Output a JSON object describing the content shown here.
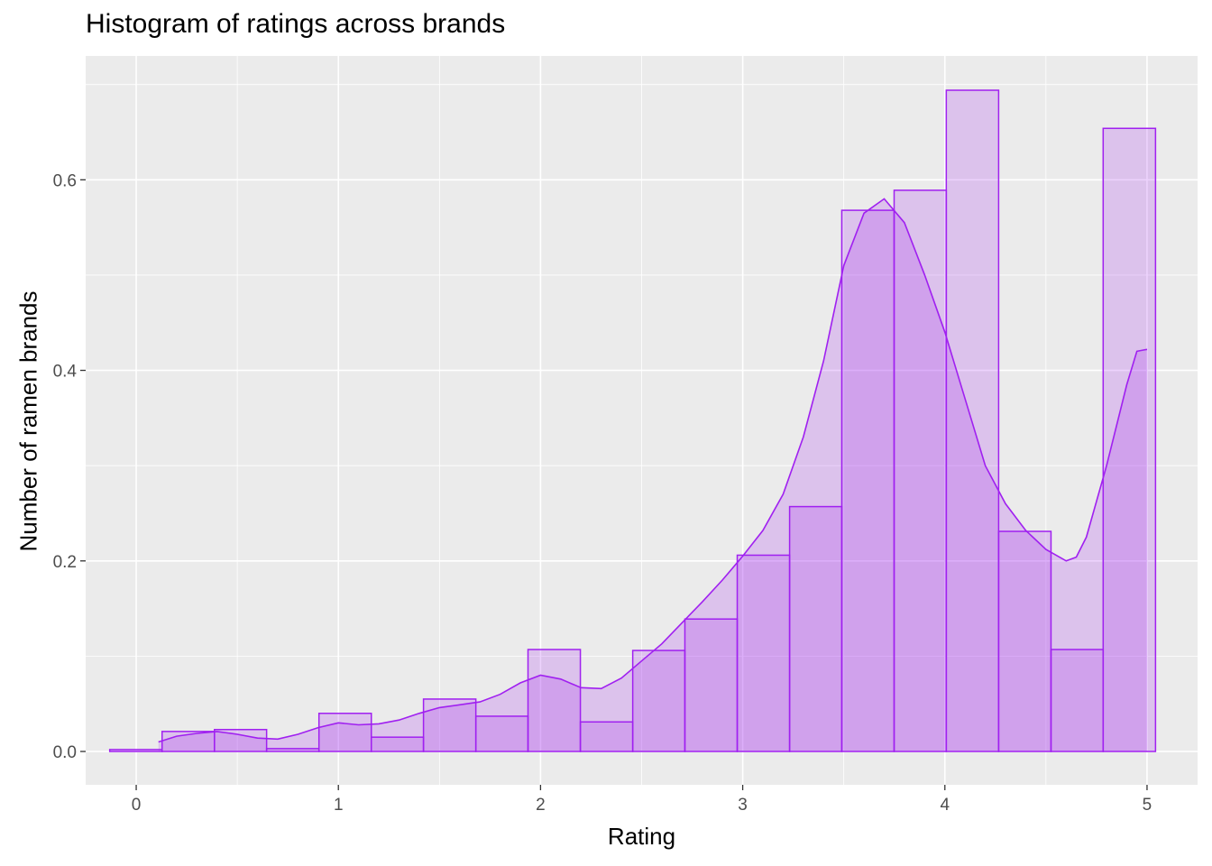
{
  "chart_data": {
    "type": "bar",
    "title": "Histogram of ratings across brands",
    "xlabel": "Rating",
    "ylabel": "Number of ramen brands",
    "xlim": [
      -0.25,
      5.25
    ],
    "ylim": [
      -0.035,
      0.73
    ],
    "x_ticks": [
      0,
      1,
      2,
      3,
      4,
      5
    ],
    "x_tick_labels": [
      "0",
      "1",
      "2",
      "3",
      "4",
      "5"
    ],
    "y_ticks": [
      0.0,
      0.2,
      0.4,
      0.6
    ],
    "y_tick_labels": [
      "0.0",
      "0.2",
      "0.4",
      "0.6"
    ],
    "grid": true,
    "bins": {
      "x_start": [
        -0.131,
        0.128,
        0.387,
        0.645,
        0.904,
        1.163,
        1.421,
        1.68,
        1.938,
        2.197,
        2.456,
        2.714,
        2.973,
        3.232,
        3.49,
        3.749,
        4.007,
        4.266,
        4.525,
        4.783
      ],
      "x_end": [
        0.128,
        0.387,
        0.645,
        0.904,
        1.163,
        1.421,
        1.68,
        1.938,
        2.197,
        2.456,
        2.714,
        2.973,
        3.232,
        3.49,
        3.749,
        4.007,
        4.266,
        4.525,
        4.783,
        5.042
      ],
      "values": [
        0.002,
        0.021,
        0.023,
        0.003,
        0.04,
        0.015,
        0.055,
        0.037,
        0.107,
        0.031,
        0.106,
        0.139,
        0.206,
        0.257,
        0.568,
        0.589,
        0.694,
        0.231,
        0.107,
        0.654
      ]
    },
    "density": {
      "x": [
        0.11,
        0.2,
        0.3,
        0.4,
        0.5,
        0.6,
        0.7,
        0.8,
        0.9,
        1.0,
        1.1,
        1.2,
        1.3,
        1.4,
        1.5,
        1.6,
        1.7,
        1.8,
        1.9,
        2.0,
        2.1,
        2.2,
        2.3,
        2.4,
        2.5,
        2.6,
        2.7,
        2.8,
        2.9,
        3.0,
        3.1,
        3.2,
        3.3,
        3.4,
        3.5,
        3.6,
        3.7,
        3.8,
        3.9,
        4.0,
        4.1,
        4.2,
        4.3,
        4.4,
        4.5,
        4.6,
        4.65,
        4.7,
        4.8,
        4.9,
        4.95,
        5.0
      ],
      "y": [
        0.01,
        0.016,
        0.019,
        0.021,
        0.018,
        0.014,
        0.013,
        0.018,
        0.025,
        0.03,
        0.028,
        0.029,
        0.033,
        0.04,
        0.046,
        0.049,
        0.052,
        0.06,
        0.072,
        0.08,
        0.076,
        0.067,
        0.066,
        0.077,
        0.095,
        0.113,
        0.135,
        0.157,
        0.18,
        0.205,
        0.232,
        0.27,
        0.33,
        0.41,
        0.51,
        0.565,
        0.58,
        0.555,
        0.5,
        0.44,
        0.37,
        0.3,
        0.26,
        0.232,
        0.212,
        0.2,
        0.204,
        0.225,
        0.3,
        0.385,
        0.42,
        0.422
      ]
    },
    "colors": {
      "bar_fill": "#a020f0",
      "bar_outline": "#a020f0",
      "density_line": "#a020f0",
      "panel_background": "#ebebeb",
      "grid": "#ffffff"
    }
  }
}
